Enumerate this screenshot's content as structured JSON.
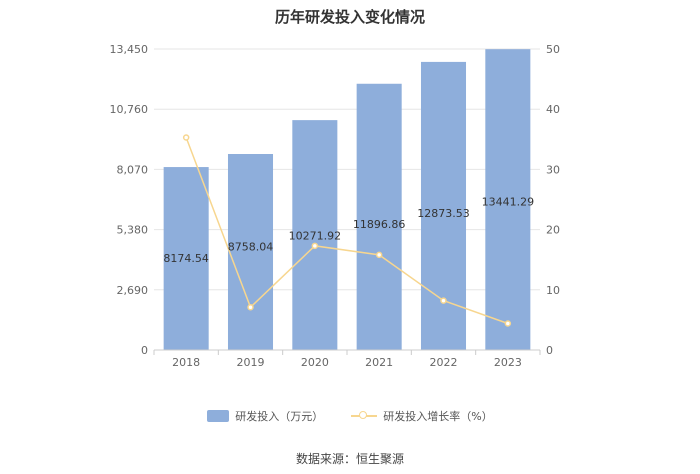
{
  "title": "历年研发投入变化情况",
  "source": "数据来源：恒生聚源",
  "colors": {
    "bar": "#8eaedb",
    "line": "#f7d68f",
    "grid": "#e6e6e6",
    "axis_text": "#666666",
    "label_text": "#333333"
  },
  "chart_data": {
    "type": "bar",
    "categories": [
      "2018",
      "2019",
      "2020",
      "2021",
      "2022",
      "2023"
    ],
    "series": [
      {
        "name": "研发投入（万元）",
        "type": "bar",
        "axis": "left",
        "values": [
          8174.54,
          8758.04,
          10271.92,
          11896.86,
          12873.53,
          13441.29
        ],
        "labels": [
          "8174.54",
          "8758.04",
          "10271.92",
          "11896.86",
          "12873.53",
          "13441.29"
        ]
      },
      {
        "name": "研发投入增长率（%）",
        "type": "line",
        "axis": "right",
        "values": [
          35.3,
          7.1,
          17.3,
          15.8,
          8.2,
          4.4
        ]
      }
    ],
    "y_left": {
      "min": 0,
      "max": 13450,
      "ticks": [
        0,
        2690,
        5380,
        8070,
        10760,
        13450
      ],
      "tick_labels": [
        "0",
        "2,690",
        "5,380",
        "8,070",
        "10,760",
        "13,450"
      ]
    },
    "y_right": {
      "min": 0,
      "max": 50,
      "ticks": [
        0,
        10,
        20,
        30,
        40,
        50
      ],
      "tick_labels": [
        "0",
        "10",
        "20",
        "30",
        "40",
        "50"
      ]
    },
    "grid": true,
    "legend": "bottom"
  }
}
